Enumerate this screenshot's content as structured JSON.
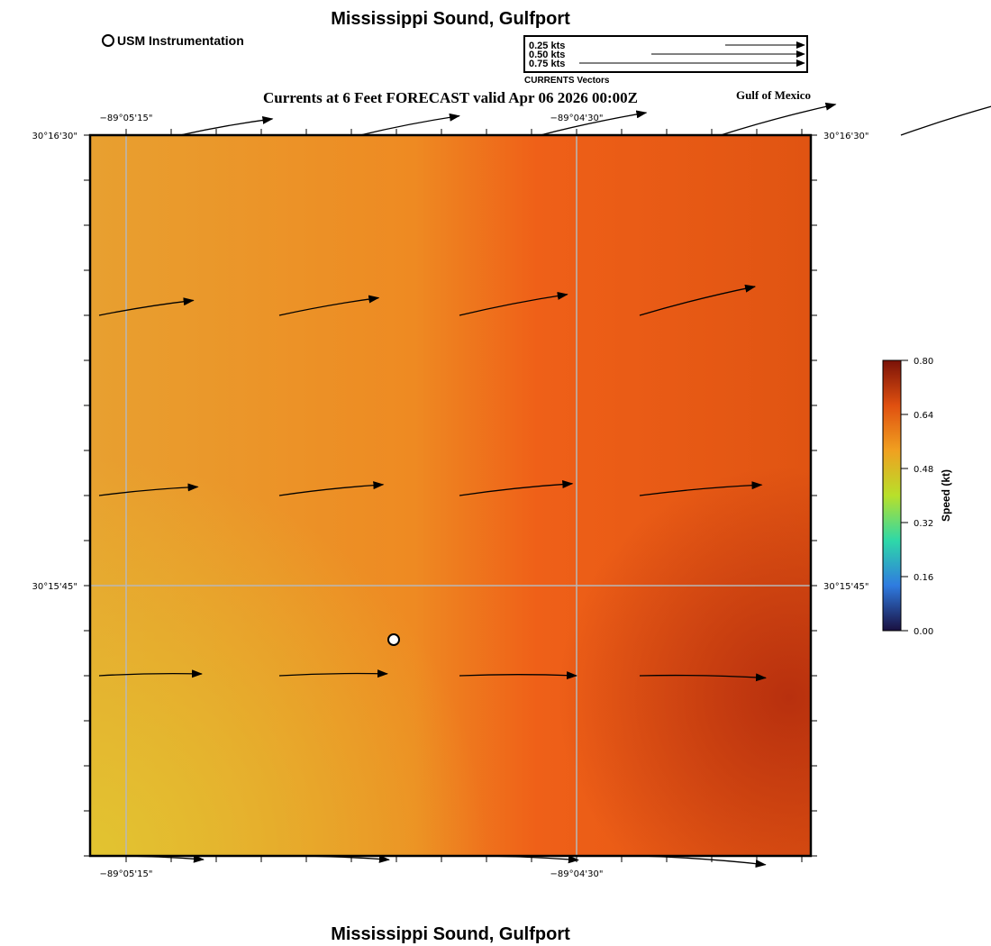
{
  "header": {
    "title": "Mississippi Sound, Gulfport",
    "main_title": "Currents at 6 Feet FORECAST valid Apr 06 2026 00:00Z",
    "region": "Gulf of Mexico",
    "footer_title": "Mississippi Sound, Gulfport"
  },
  "legend": {
    "station_label": "USM Instrumentation",
    "vector_scale": [
      {
        "label": "0.25 kts",
        "value": 0.25
      },
      {
        "label": "0.50 kts",
        "value": 0.5
      },
      {
        "label": "0.75 kts",
        "value": 0.75
      }
    ],
    "vector_caption": "CURRENTS Vectors"
  },
  "axes": {
    "lon_ticks": [
      "−89°05'15\"",
      "−89°04'30\""
    ],
    "lat_ticks": [
      "30°16'30\"",
      "30°15'45\""
    ]
  },
  "colorbar": {
    "title": "Speed (kt)",
    "ticks": [
      "0.00",
      "0.16",
      "0.32",
      "0.48",
      "0.64",
      "0.80"
    ],
    "colors": [
      "#1a1040",
      "#2f7be0",
      "#2ed8a8",
      "#b8e02a",
      "#f0a020",
      "#e05010",
      "#7a1208"
    ]
  },
  "station": {
    "name": "USM Instrumentation"
  },
  "chart_data": {
    "type": "vector_field",
    "title": "Currents at 6 Feet FORECAST valid Apr 06 2026 00:00Z",
    "units": "kt",
    "speed_range": [
      0.0,
      0.8
    ],
    "rows": [
      {
        "row": 1,
        "vectors": [
          {
            "col": 1,
            "speed": 0.52,
            "dir_deg": 80
          },
          {
            "col": 2,
            "speed": 0.56,
            "dir_deg": 79
          },
          {
            "col": 3,
            "speed": 0.6,
            "dir_deg": 78
          },
          {
            "col": 4,
            "speed": 0.66,
            "dir_deg": 75
          },
          {
            "col": 5,
            "speed": 0.7,
            "dir_deg": 73
          }
        ]
      },
      {
        "row": 2,
        "vectors": [
          {
            "col": 1,
            "speed": 0.53,
            "dir_deg": 81
          },
          {
            "col": 2,
            "speed": 0.56,
            "dir_deg": 80
          },
          {
            "col": 3,
            "speed": 0.61,
            "dir_deg": 79
          },
          {
            "col": 4,
            "speed": 0.66,
            "dir_deg": 76
          }
        ]
      },
      {
        "row": 3,
        "vectors": [
          {
            "col": 1,
            "speed": 0.55,
            "dir_deg": 85
          },
          {
            "col": 2,
            "speed": 0.58,
            "dir_deg": 84
          },
          {
            "col": 3,
            "speed": 0.63,
            "dir_deg": 84
          },
          {
            "col": 4,
            "speed": 0.68,
            "dir_deg": 85
          }
        ]
      },
      {
        "row": 4,
        "vectors": [
          {
            "col": 1,
            "speed": 0.57,
            "dir_deg": 89
          },
          {
            "col": 2,
            "speed": 0.6,
            "dir_deg": 89
          },
          {
            "col": 3,
            "speed": 0.65,
            "dir_deg": 90
          },
          {
            "col": 4,
            "speed": 0.7,
            "dir_deg": 91
          }
        ]
      },
      {
        "row": 5,
        "vectors": [
          {
            "col": 1,
            "speed": 0.58,
            "dir_deg": 92
          },
          {
            "col": 2,
            "speed": 0.61,
            "dir_deg": 92
          },
          {
            "col": 3,
            "speed": 0.66,
            "dir_deg": 92
          },
          {
            "col": 4,
            "speed": 0.7,
            "dir_deg": 94
          }
        ]
      }
    ]
  }
}
